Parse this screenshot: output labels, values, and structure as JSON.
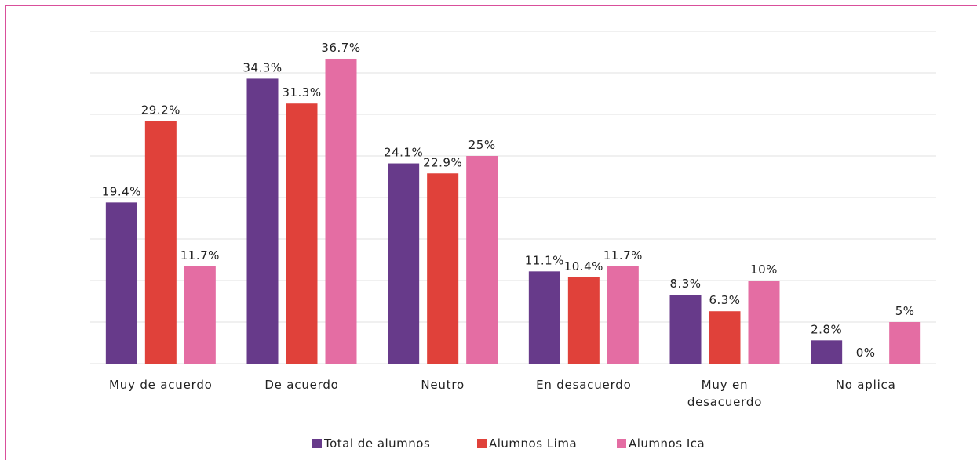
{
  "chart_data": {
    "type": "bar",
    "categories": [
      "Muy de acuerdo",
      "De acuerdo",
      "Neutro",
      "En desacuerdo",
      "Muy en desacuerdo",
      "No aplica"
    ],
    "series": [
      {
        "name": "Total de alumnos",
        "color": "#673a8a",
        "values": [
          19.4,
          34.3,
          24.1,
          11.1,
          8.3,
          2.8
        ],
        "value_labels": [
          "19.4%",
          "34.3%",
          "24.1%",
          "11.1%",
          "8.3%",
          "2.8%"
        ]
      },
      {
        "name": "Alumnos Lima",
        "color": "#e0413a",
        "values": [
          29.2,
          31.3,
          22.9,
          10.4,
          6.3,
          0
        ],
        "value_labels": [
          "29.2%",
          "31.3%",
          "22.9%",
          "10.4%",
          "6.3%",
          "0%"
        ]
      },
      {
        "name": "Alumnos Ica",
        "color": "#e46da3",
        "values": [
          11.7,
          36.7,
          25,
          11.7,
          10,
          5
        ],
        "value_labels": [
          "11.7%",
          "36.7%",
          "25%",
          "11.7%",
          "10%",
          "5%"
        ]
      }
    ],
    "ylim": [
      0,
      40
    ],
    "yticks": [
      0,
      5,
      10,
      15,
      20,
      25,
      30,
      35,
      40
    ],
    "grid": true,
    "legend": "bottom"
  }
}
